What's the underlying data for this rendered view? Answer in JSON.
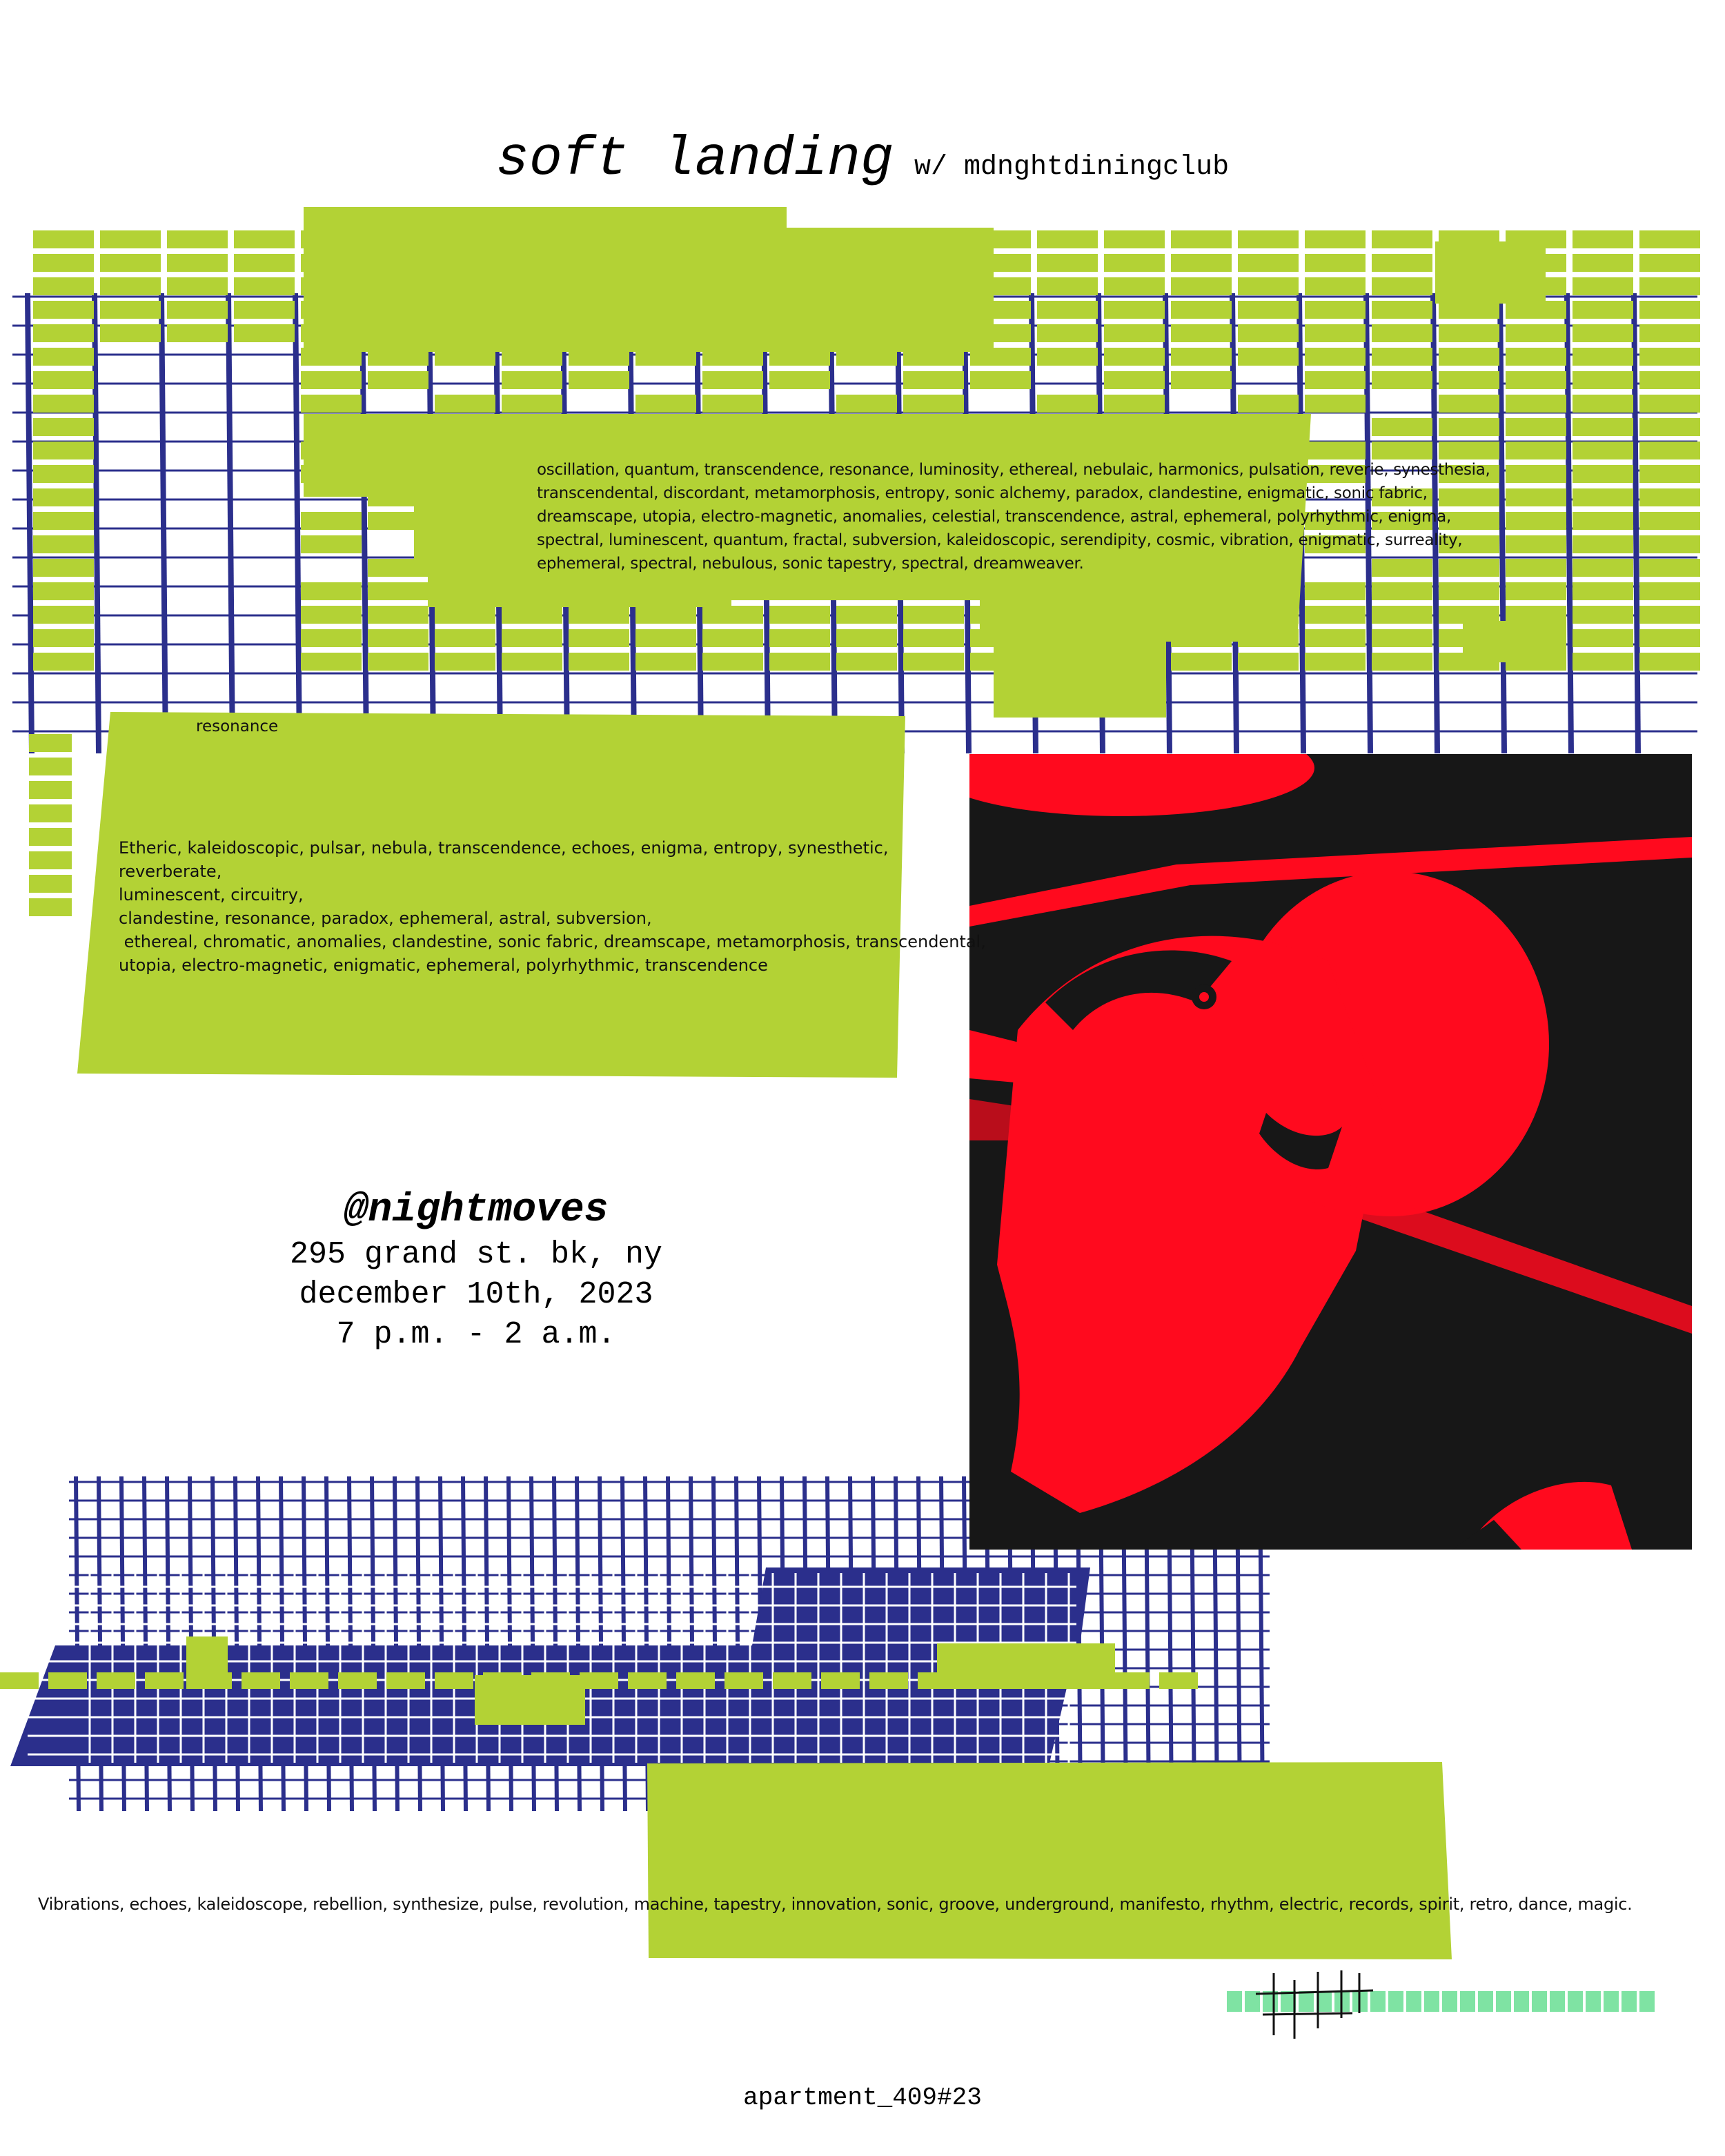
{
  "header": {
    "title": "soft landing",
    "subtitle": "w/ mdnghtdiningclub"
  },
  "paragraph_top": "oscillation, quantum, transcendence, resonance, luminosity, ethereal, nebulaic, harmonics, pulsation, reverie, synesthesia, transcendental, discordant, metamorphosis, entropy, sonic alchemy, paradox, clandestine, enigmatic, sonic fabric, dreamscape, utopia, electro-magnetic, anomalies, celestial, transcendence, astral, ephemeral, polyrhythmic, enigma, spectral, luminescent, quantum, fractal, subversion, kaleidoscopic, serendipity, cosmic, vibration, enigmatic, surreality, ephemeral, spectral, nebulous, sonic tapestry, spectral, dreamweaver.",
  "label_resonance": "resonance",
  "paragraph_middle": [
    "Etheric, kaleidoscopic, pulsar, nebula, transcendence, echoes, enigma, entropy, synesthetic, reverberate,",
    "luminescent, circuitry,",
    "clandestine, resonance, paradox, ephemeral, astral, subversion,",
    " ethereal, chromatic, anomalies, clandestine, sonic fabric, dreamscape, metamorphosis, transcendental,",
    "utopia, electro-magnetic, enigmatic, ephemeral, polyrhythmic, transcendence"
  ],
  "event": {
    "venue_handle": "@nightmoves",
    "address": "295 grand st. bk, ny",
    "date": "december 10th, 2023",
    "time": "7 p.m. - 2 a.m."
  },
  "paragraph_bottom": "Vibrations, echoes, kaleidoscope, rebellion, synthesize, pulse, revolution, machine, tapestry, innovation, sonic, groove, underground, manifesto, rhythm, electric, records, spirit, retro, dance, magic.",
  "footer": "apartment_409#23",
  "colors": {
    "lime": "#b3d235",
    "navy": "#2b2f8c",
    "red": "#ff0a1e",
    "black": "#171717",
    "mint": "#7fe3a3",
    "ink": "#111111"
  },
  "graphics": {
    "top_grid": "grid-texture",
    "bottom_grid": "grid-texture",
    "photo": "red-duotone-portrait-photo",
    "mint_bar": "mint-dash-bar"
  }
}
